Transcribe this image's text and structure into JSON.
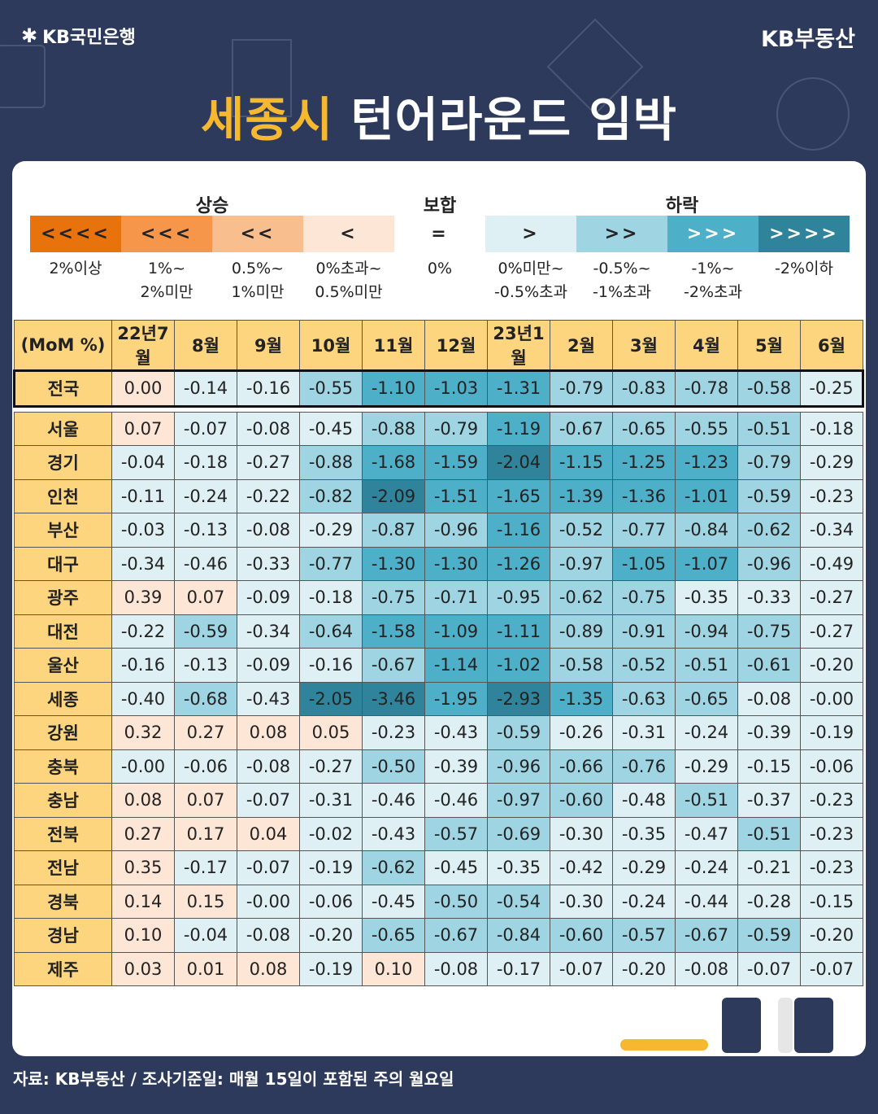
{
  "header": {
    "bank_logo": "KB국민은행",
    "brand_right": "KB부동산",
    "title_highlight": "세종시",
    "title_rest": "턴어라운드 임박"
  },
  "legend": {
    "groups": [
      "상승",
      "보합",
      "하락"
    ],
    "boxes": [
      {
        "symbol": "<<<<",
        "caption": "2%이상",
        "color": "#e8720c"
      },
      {
        "symbol": "<<<",
        "caption": "1%~\n2%미만",
        "color": "#f5964a"
      },
      {
        "symbol": "<<",
        "caption": "0.5%~\n1%미만",
        "color": "#f8be8e"
      },
      {
        "symbol": "<",
        "caption": "0%초과~\n0.5%미만",
        "color": "#fde6d6"
      },
      {
        "symbol": "=",
        "caption": "0%",
        "color": "#ffffff"
      },
      {
        "symbol": ">",
        "caption": "0%미만~\n-0.5%초과",
        "color": "#dff0f5"
      },
      {
        "symbol": ">>",
        "caption": "-0.5%~\n-1%초과",
        "color": "#9fd4e3"
      },
      {
        "symbol": ">>>",
        "caption": "-1%~\n-2%초과",
        "color": "#4eafc9"
      },
      {
        "symbol": ">>>>",
        "caption": "-2%이하",
        "color": "#2f849b"
      }
    ]
  },
  "chart_data": {
    "type": "table",
    "corner_label": "(MoM %)",
    "columns": [
      "22년7월",
      "8월",
      "9월",
      "10월",
      "11월",
      "12월",
      "23년1월",
      "2월",
      "3월",
      "4월",
      "5월",
      "6월"
    ],
    "rows": [
      {
        "region": "전국",
        "values": [
          "0.00",
          "-0.14",
          "-0.16",
          "-0.55",
          "-1.10",
          "-1.03",
          "-1.31",
          "-0.79",
          "-0.83",
          "-0.78",
          "-0.58",
          "-0.25"
        ]
      },
      {
        "region": "서울",
        "values": [
          "0.07",
          "-0.07",
          "-0.08",
          "-0.45",
          "-0.88",
          "-0.79",
          "-1.19",
          "-0.67",
          "-0.65",
          "-0.55",
          "-0.51",
          "-0.18"
        ]
      },
      {
        "region": "경기",
        "values": [
          "-0.04",
          "-0.18",
          "-0.27",
          "-0.88",
          "-1.68",
          "-1.59",
          "-2.04",
          "-1.15",
          "-1.25",
          "-1.23",
          "-0.79",
          "-0.29"
        ]
      },
      {
        "region": "인천",
        "values": [
          "-0.11",
          "-0.24",
          "-0.22",
          "-0.82",
          "-2.09",
          "-1.51",
          "-1.65",
          "-1.39",
          "-1.36",
          "-1.01",
          "-0.59",
          "-0.23"
        ]
      },
      {
        "region": "부산",
        "values": [
          "-0.03",
          "-0.13",
          "-0.08",
          "-0.29",
          "-0.87",
          "-0.96",
          "-1.16",
          "-0.52",
          "-0.77",
          "-0.84",
          "-0.62",
          "-0.34"
        ]
      },
      {
        "region": "대구",
        "values": [
          "-0.34",
          "-0.46",
          "-0.33",
          "-0.77",
          "-1.30",
          "-1.30",
          "-1.26",
          "-0.97",
          "-1.05",
          "-1.07",
          "-0.96",
          "-0.49"
        ]
      },
      {
        "region": "광주",
        "values": [
          "0.39",
          "0.07",
          "-0.09",
          "-0.18",
          "-0.75",
          "-0.71",
          "-0.95",
          "-0.62",
          "-0.75",
          "-0.35",
          "-0.33",
          "-0.27"
        ]
      },
      {
        "region": "대전",
        "values": [
          "-0.22",
          "-0.59",
          "-0.34",
          "-0.64",
          "-1.58",
          "-1.09",
          "-1.11",
          "-0.89",
          "-0.91",
          "-0.94",
          "-0.75",
          "-0.27"
        ]
      },
      {
        "region": "울산",
        "values": [
          "-0.16",
          "-0.13",
          "-0.09",
          "-0.16",
          "-0.67",
          "-1.14",
          "-1.02",
          "-0.58",
          "-0.52",
          "-0.51",
          "-0.61",
          "-0.20"
        ]
      },
      {
        "region": "세종",
        "values": [
          "-0.40",
          "-0.68",
          "-0.43",
          "-2.05",
          "-3.46",
          "-1.95",
          "-2.93",
          "-1.35",
          "-0.63",
          "-0.65",
          "-0.08",
          "-0.00"
        ]
      },
      {
        "region": "강원",
        "values": [
          "0.32",
          "0.27",
          "0.08",
          "0.05",
          "-0.23",
          "-0.43",
          "-0.59",
          "-0.26",
          "-0.31",
          "-0.24",
          "-0.39",
          "-0.19"
        ]
      },
      {
        "region": "충북",
        "values": [
          "-0.00",
          "-0.06",
          "-0.08",
          "-0.27",
          "-0.50",
          "-0.39",
          "-0.96",
          "-0.66",
          "-0.76",
          "-0.29",
          "-0.15",
          "-0.06"
        ]
      },
      {
        "region": "충남",
        "values": [
          "0.08",
          "0.07",
          "-0.07",
          "-0.31",
          "-0.46",
          "-0.46",
          "-0.97",
          "-0.60",
          "-0.48",
          "-0.51",
          "-0.37",
          "-0.23"
        ]
      },
      {
        "region": "전북",
        "values": [
          "0.27",
          "0.17",
          "0.04",
          "-0.02",
          "-0.43",
          "-0.57",
          "-0.69",
          "-0.30",
          "-0.35",
          "-0.47",
          "-0.51",
          "-0.23"
        ]
      },
      {
        "region": "전남",
        "values": [
          "0.35",
          "-0.17",
          "-0.07",
          "-0.19",
          "-0.62",
          "-0.45",
          "-0.35",
          "-0.42",
          "-0.29",
          "-0.24",
          "-0.21",
          "-0.23"
        ]
      },
      {
        "region": "경북",
        "values": [
          "0.14",
          "0.15",
          "-0.00",
          "-0.06",
          "-0.45",
          "-0.50",
          "-0.54",
          "-0.30",
          "-0.24",
          "-0.44",
          "-0.28",
          "-0.15"
        ]
      },
      {
        "region": "경남",
        "values": [
          "0.10",
          "-0.04",
          "-0.08",
          "-0.20",
          "-0.65",
          "-0.67",
          "-0.84",
          "-0.60",
          "-0.57",
          "-0.67",
          "-0.59",
          "-0.20"
        ]
      },
      {
        "region": "제주",
        "values": [
          "0.03",
          "0.01",
          "0.08",
          "-0.19",
          "0.10",
          "-0.08",
          "-0.17",
          "-0.07",
          "-0.20",
          "-0.08",
          "-0.07",
          "-0.07"
        ]
      }
    ]
  },
  "footer": {
    "source": "자료: KB부동산 / 조사기준일: 매월 15일이 포함된 주의 월요일"
  }
}
